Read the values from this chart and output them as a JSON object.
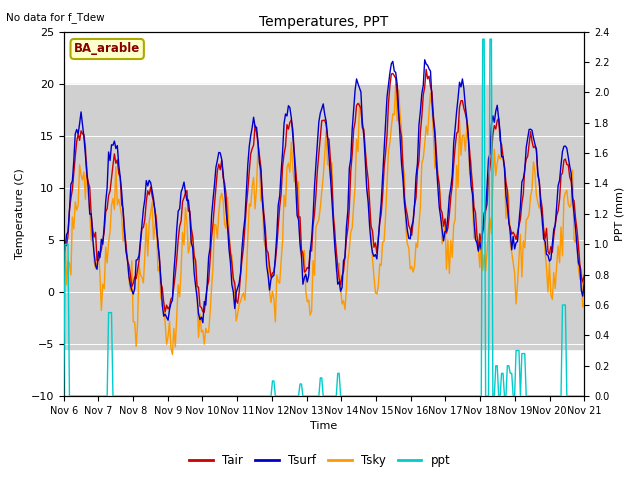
{
  "title": "Temperatures, PPT",
  "no_data_text": "No data for f_Tdew",
  "site_label": "BA_arable",
  "ylabel_left": "Temperature (C)",
  "ylabel_right": "PPT (mm)",
  "xlabel": "Time",
  "ylim_left": [
    -10,
    25
  ],
  "ylim_right": [
    0.0,
    2.4
  ],
  "gray_band": [
    -5.5,
    20.0
  ],
  "xtick_labels": [
    "Nov 6",
    "Nov 7",
    "Nov 8",
    "Nov 9",
    "Nov 10",
    "Nov 11",
    "Nov 12",
    "Nov 13",
    "Nov 14",
    "Nov 15",
    "Nov 16",
    "Nov 17",
    "Nov 18",
    "Nov 19",
    "Nov 20",
    "Nov 21"
  ],
  "line_colors": {
    "Tair": "#cc0000",
    "Tsurf": "#0000cc",
    "Tsky": "#ff9900",
    "ppt": "#00cccc"
  },
  "line_widths": {
    "Tair": 1.0,
    "Tsurf": 1.0,
    "Tsky": 1.0,
    "ppt": 1.0
  },
  "yticks_left": [
    -10,
    -5,
    0,
    5,
    10,
    15,
    20,
    25
  ],
  "yticks_right": [
    0.0,
    0.2,
    0.4,
    0.6,
    0.8,
    1.0,
    1.2,
    1.4,
    1.6,
    1.8,
    2.0,
    2.2,
    2.4
  ]
}
